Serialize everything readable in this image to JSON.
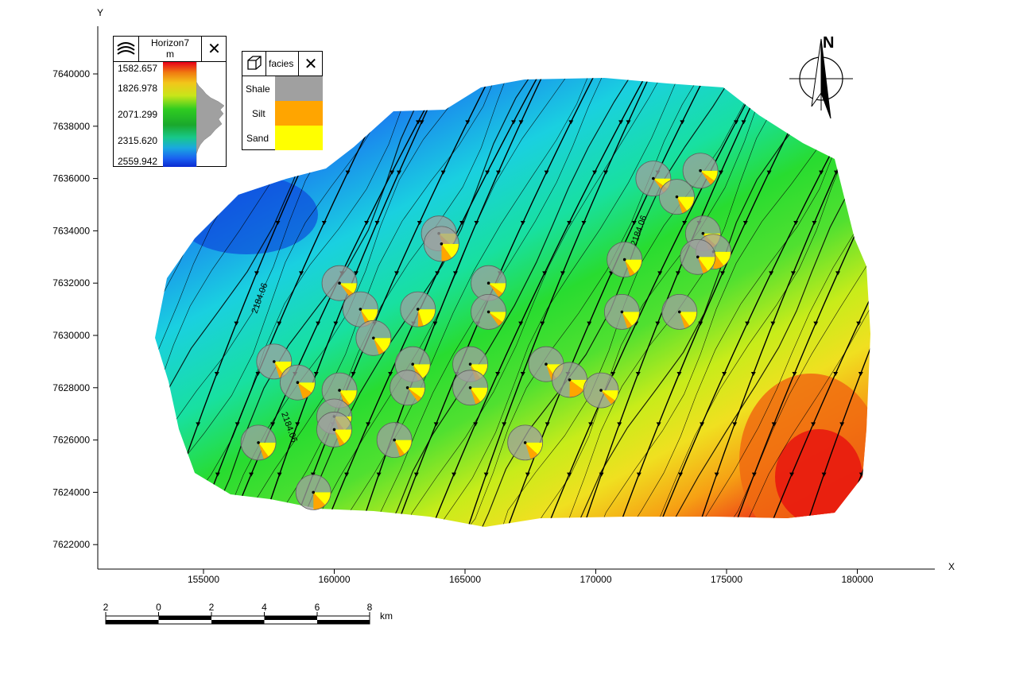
{
  "axes": {
    "x_label": "X",
    "y_label": "Y",
    "x_ticks": [
      "155000",
      "160000",
      "165000",
      "170000",
      "175000",
      "180000"
    ],
    "y_ticks": [
      "7622000",
      "7624000",
      "7626000",
      "7628000",
      "7630000",
      "7632000",
      "7634000",
      "7636000",
      "7638000",
      "7640000"
    ]
  },
  "horizon_legend": {
    "title": "Horizon7",
    "unit": "m",
    "values": [
      "1582.657",
      "1826.978",
      "2071.299",
      "2315.620",
      "2559.942"
    ],
    "gradient_colors": [
      "#e8001a",
      "#f07a10",
      "#f2c61a",
      "#c8e61a",
      "#2fcc20",
      "#1aa82c",
      "#18c88a",
      "#1aa8e0",
      "#1a60f0",
      "#0a2ad0"
    ]
  },
  "facies_legend": {
    "title": "facies",
    "items": [
      {
        "label": "Shale",
        "color": "#a0a0a0"
      },
      {
        "label": "Silt",
        "color": "#ffa500"
      },
      {
        "label": "Sand",
        "color": "#ffff00"
      }
    ]
  },
  "north_arrow": {
    "label": "N"
  },
  "scale_bar": {
    "ticks": [
      "2",
      "0",
      "2",
      "4",
      "6",
      "8"
    ],
    "unit": "km"
  },
  "contour_labels": [
    "2184.06",
    "2184.06",
    "2184.06"
  ],
  "wells": [
    {
      "x": 164000,
      "y": 7633900,
      "shale": 0.8,
      "silt": 0.08,
      "sand": 0.12
    },
    {
      "x": 164100,
      "y": 7633500,
      "shale": 0.75,
      "silt": 0.1,
      "sand": 0.15
    },
    {
      "x": 160200,
      "y": 7632000,
      "shale": 0.85,
      "silt": 0.05,
      "sand": 0.1
    },
    {
      "x": 161000,
      "y": 7631000,
      "shale": 0.8,
      "silt": 0.05,
      "sand": 0.15
    },
    {
      "x": 163200,
      "y": 7631000,
      "shale": 0.75,
      "silt": 0.05,
      "sand": 0.2
    },
    {
      "x": 161500,
      "y": 7629900,
      "shale": 0.8,
      "silt": 0.05,
      "sand": 0.15
    },
    {
      "x": 165900,
      "y": 7632000,
      "shale": 0.85,
      "silt": 0.05,
      "sand": 0.1
    },
    {
      "x": 165900,
      "y": 7630900,
      "shale": 0.85,
      "silt": 0.05,
      "sand": 0.1
    },
    {
      "x": 157700,
      "y": 7629000,
      "shale": 0.8,
      "silt": 0.05,
      "sand": 0.15
    },
    {
      "x": 158600,
      "y": 7628200,
      "shale": 0.8,
      "silt": 0.1,
      "sand": 0.1
    },
    {
      "x": 160200,
      "y": 7627900,
      "shale": 0.8,
      "silt": 0.05,
      "sand": 0.15
    },
    {
      "x": 163000,
      "y": 7628900,
      "shale": 0.8,
      "silt": 0.05,
      "sand": 0.15
    },
    {
      "x": 162800,
      "y": 7628000,
      "shale": 0.85,
      "silt": 0.05,
      "sand": 0.1
    },
    {
      "x": 165200,
      "y": 7628900,
      "shale": 0.8,
      "silt": 0.05,
      "sand": 0.15
    },
    {
      "x": 165200,
      "y": 7628000,
      "shale": 0.8,
      "silt": 0.05,
      "sand": 0.15
    },
    {
      "x": 160000,
      "y": 7626900,
      "shale": 0.8,
      "silt": 0.05,
      "sand": 0.15
    },
    {
      "x": 160000,
      "y": 7626400,
      "shale": 0.8,
      "silt": 0.05,
      "sand": 0.15
    },
    {
      "x": 157100,
      "y": 7625900,
      "shale": 0.8,
      "silt": 0.05,
      "sand": 0.15
    },
    {
      "x": 162300,
      "y": 7626000,
      "shale": 0.8,
      "silt": 0.05,
      "sand": 0.15
    },
    {
      "x": 159200,
      "y": 7624000,
      "shale": 0.75,
      "silt": 0.12,
      "sand": 0.13
    },
    {
      "x": 168100,
      "y": 7628900,
      "shale": 0.8,
      "silt": 0.05,
      "sand": 0.15
    },
    {
      "x": 169000,
      "y": 7628300,
      "shale": 0.75,
      "silt": 0.15,
      "sand": 0.1
    },
    {
      "x": 170200,
      "y": 7627900,
      "shale": 0.85,
      "silt": 0.05,
      "sand": 0.1
    },
    {
      "x": 167300,
      "y": 7625900,
      "shale": 0.8,
      "silt": 0.08,
      "sand": 0.12
    },
    {
      "x": 172200,
      "y": 7636000,
      "shale": 0.85,
      "silt": 0.05,
      "sand": 0.1
    },
    {
      "x": 173100,
      "y": 7635300,
      "shale": 0.8,
      "silt": 0.05,
      "sand": 0.15
    },
    {
      "x": 174000,
      "y": 7636300,
      "shale": 0.85,
      "silt": 0.05,
      "sand": 0.1
    },
    {
      "x": 174100,
      "y": 7633900,
      "shale": 0.8,
      "silt": 0.08,
      "sand": 0.12
    },
    {
      "x": 174500,
      "y": 7633200,
      "shale": 0.75,
      "silt": 0.1,
      "sand": 0.15
    },
    {
      "x": 173900,
      "y": 7633000,
      "shale": 0.8,
      "silt": 0.05,
      "sand": 0.15
    },
    {
      "x": 171100,
      "y": 7632900,
      "shale": 0.8,
      "silt": 0.05,
      "sand": 0.15
    },
    {
      "x": 171000,
      "y": 7630900,
      "shale": 0.8,
      "silt": 0.05,
      "sand": 0.15
    },
    {
      "x": 173200,
      "y": 7630900,
      "shale": 0.8,
      "silt": 0.05,
      "sand": 0.15
    }
  ]
}
